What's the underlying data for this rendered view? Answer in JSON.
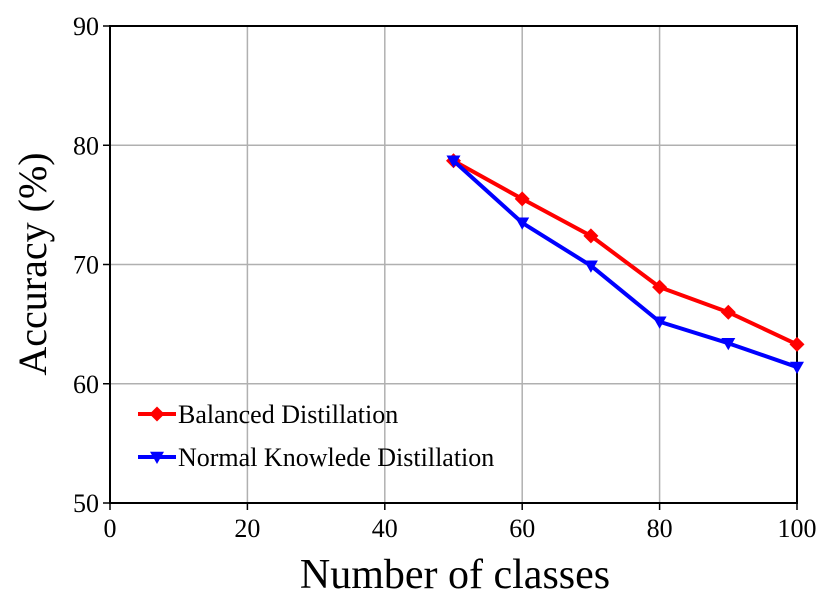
{
  "chart_data": {
    "type": "line",
    "title": "",
    "xlabel": "Number of classes",
    "ylabel": "Accuracy (%)",
    "xlim": [
      0,
      100
    ],
    "ylim": [
      50,
      90
    ],
    "xticks": [
      0,
      20,
      40,
      60,
      80,
      100
    ],
    "yticks": [
      50,
      60,
      70,
      80,
      90
    ],
    "grid": true,
    "legend_position": "lower-left",
    "series": [
      {
        "name": "Balanced Distillation",
        "color": "#ff0000",
        "marker": "diamond",
        "x": [
          50,
          60,
          70,
          80,
          90,
          100
        ],
        "values": [
          78.7,
          75.5,
          72.4,
          68.1,
          66.0,
          63.3
        ]
      },
      {
        "name": "Normal Knowlede Distillation",
        "color": "#0000ff",
        "marker": "triangle-down",
        "x": [
          50,
          60,
          70,
          80,
          90,
          100
        ],
        "values": [
          78.7,
          73.5,
          69.9,
          65.2,
          63.4,
          61.4
        ]
      }
    ]
  }
}
